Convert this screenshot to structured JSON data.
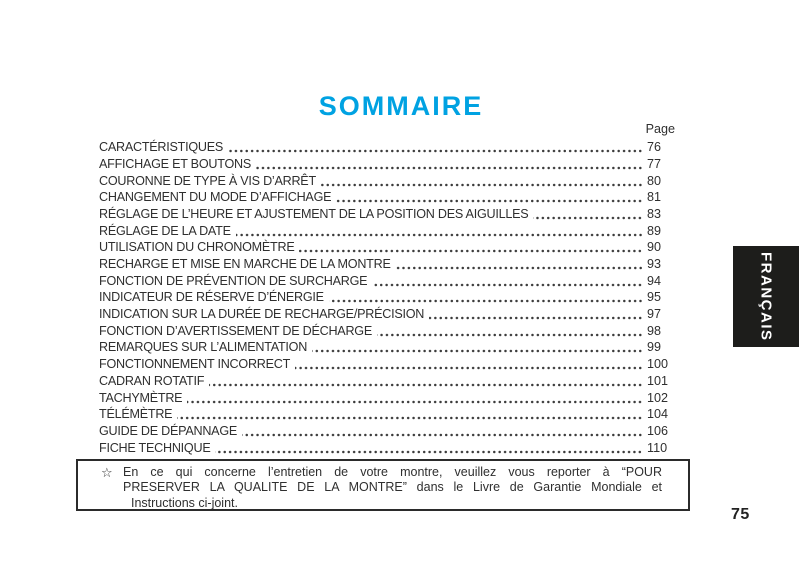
{
  "colors": {
    "title_accent": "#00a2e2",
    "body_text": "#2f2f2f",
    "tab_background": "#1d1d1b",
    "tab_text": "#ffffff"
  },
  "header": {
    "title": "SOMMAIRE",
    "page_column_label": "Page"
  },
  "toc": {
    "items": [
      {
        "label": "CARACTÉRISTIQUES",
        "page": "76"
      },
      {
        "label": "AFFICHAGE ET BOUTONS",
        "page": "77"
      },
      {
        "label": "COURONNE DE TYPE À VIS D’ARRÊT",
        "page": "80"
      },
      {
        "label": "CHANGEMENT DU MODE D’AFFICHAGE",
        "page": "81"
      },
      {
        "label": "RÉGLAGE DE L’HEURE ET AJUSTEMENT DE LA POSITION DES AIGUILLES",
        "page": "83"
      },
      {
        "label": "RÉGLAGE DE LA DATE",
        "page": "89"
      },
      {
        "label": "UTILISATION DU CHRONOMÈTRE",
        "page": "90"
      },
      {
        "label": "RECHARGE ET MISE EN MARCHE DE LA MONTRE",
        "page": "93"
      },
      {
        "label": "FONCTION DE PRÉVENTION DE SURCHARGE",
        "page": "94"
      },
      {
        "label": "INDICATEUR DE RÉSERVE D’ÉNERGIE",
        "page": "95"
      },
      {
        "label": "INDICATION SUR LA DURÉE DE RECHARGE/PRÉCISION",
        "page": "97"
      },
      {
        "label": "FONCTION D’AVERTISSEMENT DE DÉCHARGE",
        "page": "98"
      },
      {
        "label": "REMARQUES SUR L’ALIMENTATION",
        "page": "99"
      },
      {
        "label": "FONCTIONNEMENT INCORRECT",
        "page": "100"
      },
      {
        "label": "CADRAN ROTATIF",
        "page": "101"
      },
      {
        "label": "TACHYMÈTRE",
        "page": "102"
      },
      {
        "label": "TÉLÉMÈTRE",
        "page": "104"
      },
      {
        "label": "GUIDE DE DÉPANNAGE",
        "page": "106"
      },
      {
        "label": "FICHE TECHNIQUE",
        "page": "110"
      }
    ]
  },
  "note": {
    "star_icon": "☆",
    "lines": [
      "En ce qui concerne l’entretien de votre montre, veuillez vous reporter à “POUR",
      "PRESERVER LA QUALITE DE LA MONTRE” dans le Livre de Garantie Mondiale et",
      "Instructions ci-joint."
    ]
  },
  "footer": {
    "page_number": "75"
  },
  "language_tab": {
    "label": "FRANÇAIS"
  }
}
